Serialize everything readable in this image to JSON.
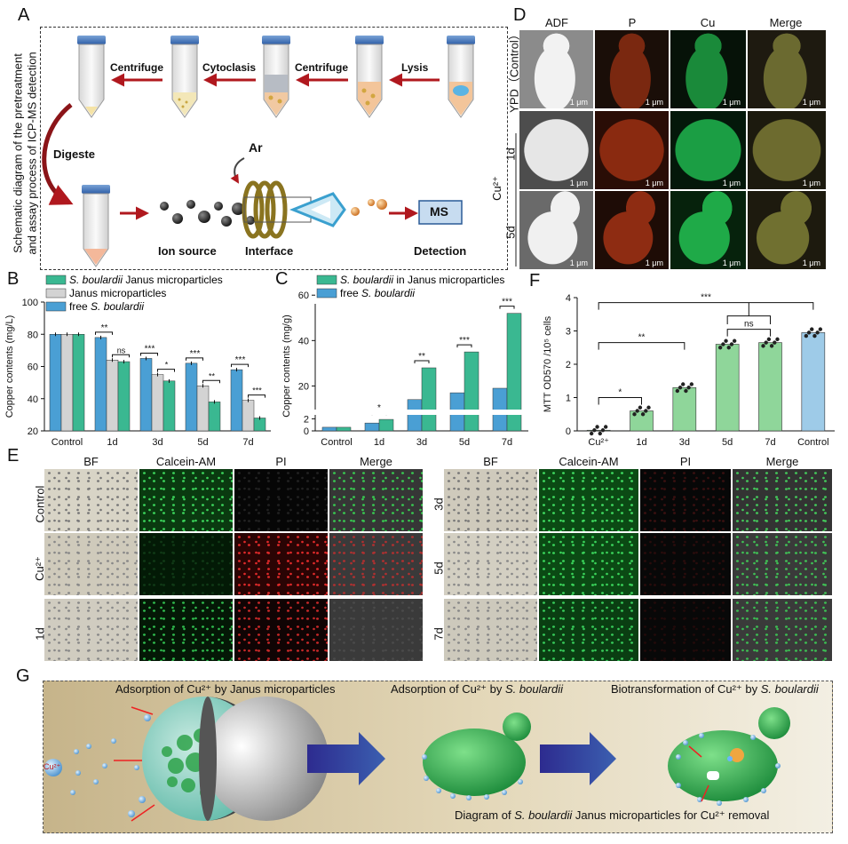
{
  "panel_letters": [
    "A",
    "B",
    "C",
    "D",
    "E",
    "F",
    "G"
  ],
  "panelA": {
    "vertical_title_line1": "Schematic diagram of the pretreatment",
    "vertical_title_line2": "and assay process of ICP-MS detection",
    "steps": [
      "Centrifuge",
      "Cytoclasis",
      "Centrifuge",
      "Lysis"
    ],
    "digeste": "Digeste",
    "ar": "Ar",
    "ms": "MS",
    "ion_source": "Ion source",
    "interface": "Interface",
    "detection": "Detection"
  },
  "panelD": {
    "cols": [
      "ADF",
      "P",
      "Cu",
      "Merge"
    ],
    "row0": "YPD（Control）",
    "row1": "1d",
    "row2": "5d",
    "group": "Cu²⁺",
    "scale": "1 μm"
  },
  "panelE": {
    "cols": [
      "BF",
      "Calcein-AM",
      "PI",
      "Merge"
    ],
    "left_rows": [
      "Control",
      "Cu²⁺",
      "1d"
    ],
    "right_rows": [
      "3d",
      "5d",
      "7d"
    ]
  },
  "panelG": {
    "title1": "Adsorption of Cu²⁺ by Janus microparticles",
    "title2_pre": "Adsorption of Cu²⁺ by ",
    "title2_it": "S. boulardii",
    "title3_pre": "Biotransformation of Cu²⁺ by ",
    "title3_it": "S. boulardii",
    "ion": "Cu²⁺",
    "footer_pre": "Diagram of ",
    "footer_it": "S. boulardii",
    "footer_post": " Janus microparticles for Cu²⁺ removal"
  },
  "colors": {
    "teal": "#3ab891",
    "gray": "#d3d3d3",
    "blue": "#4a9fd4",
    "green": "#8fd69a",
    "lightblue": "#9ecbe8",
    "arrow": "#b0181e"
  },
  "chart_data": [
    {
      "type": "bar",
      "panel": "B",
      "ylabel": "Copper contents (mg/L)",
      "categories": [
        "Control",
        "1d",
        "3d",
        "5d",
        "7d"
      ],
      "ylim": [
        20,
        100
      ],
      "yticks": [
        20,
        40,
        60,
        80,
        100
      ],
      "series": [
        {
          "name": "S. boulardii Janus microparticles",
          "values": [
            80,
            63,
            51,
            38,
            28
          ]
        },
        {
          "name": "Janus microparticles",
          "values": [
            80,
            64,
            55,
            48,
            39
          ]
        },
        {
          "name": "free S. boulardii",
          "values": [
            80,
            78,
            65,
            62,
            58
          ]
        }
      ],
      "legend": [
        {
          "it": "S. boulardii",
          "rest": " Janus microparticles"
        },
        {
          "it": "",
          "rest": "Janus microparticles"
        },
        {
          "pre": "free ",
          "it": "S. boulardii"
        }
      ],
      "sig": [
        [
          "**",
          "ns"
        ],
        [
          "***",
          "*"
        ],
        [
          "***",
          "**"
        ],
        [
          "***",
          "***"
        ]
      ]
    },
    {
      "type": "bar",
      "panel": "C",
      "ylabel": "Copper contents (mg/g)",
      "categories": [
        "Control",
        "1d",
        "3d",
        "5d",
        "7d"
      ],
      "yticks_upper": [
        20,
        40,
        60
      ],
      "yticks_lower": [
        0,
        2
      ],
      "series": [
        {
          "name": "S. boulardii in Janus microparticles",
          "values": [
            0.6,
            1.9,
            28,
            35,
            52
          ]
        },
        {
          "name": "free S. boulardii",
          "values": [
            0.6,
            1.3,
            14,
            17,
            19
          ]
        }
      ],
      "legend": [
        {
          "it": "S. boulardii",
          "rest": " in Janus microparticles"
        },
        {
          "pre": "free ",
          "it": "S. boulardii"
        }
      ],
      "sig": [
        "*",
        "**",
        "***",
        "***"
      ]
    },
    {
      "type": "bar",
      "panel": "F",
      "ylabel": "MTT OD570 /10⁵ cells",
      "categories": [
        "Cu²⁺",
        "1d",
        "3d",
        "5d",
        "7d",
        "Control"
      ],
      "ylim": [
        0,
        4
      ],
      "yticks": [
        0,
        1,
        2,
        3,
        4
      ],
      "values": [
        0.02,
        0.6,
        1.3,
        2.6,
        2.65,
        2.95
      ],
      "sig": [
        "*",
        "**",
        "***",
        "ns"
      ]
    }
  ]
}
